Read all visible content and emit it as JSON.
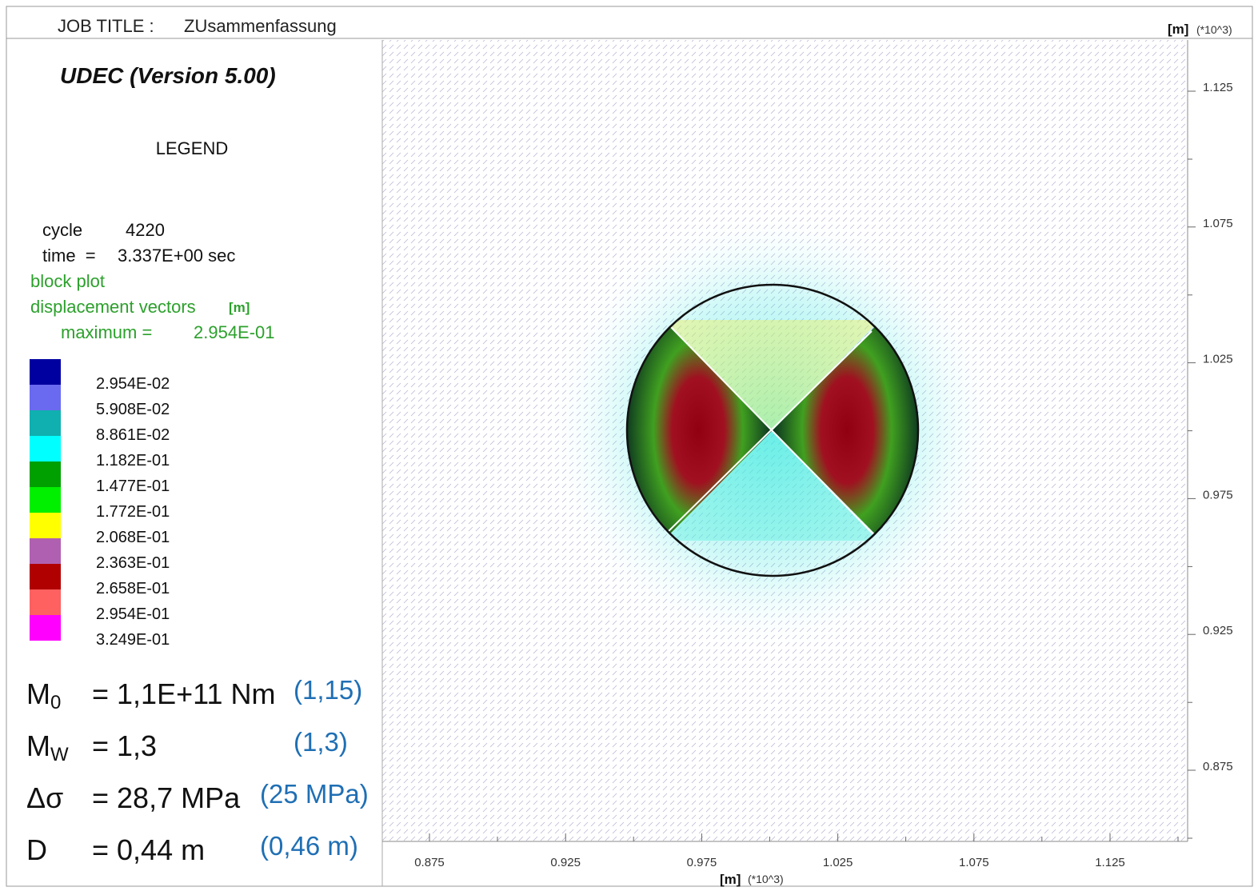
{
  "header": {
    "job_title_label": "JOB TITLE :",
    "job_title": "ZUsammenfassung",
    "program": "UDEC (Version 5.00)",
    "legend_heading": "LEGEND"
  },
  "info": {
    "cycle_label": "cycle",
    "cycle": "4220",
    "time_label": "time  =",
    "time": "3.337E+00 sec",
    "plot1": "block plot",
    "plot2": "displacement vectors",
    "plot2_unit": "[m]",
    "maximum_label": "maximum =",
    "maximum": "2.954E-01"
  },
  "color_scale": [
    {
      "color": "#0000a0",
      "label": "2.954E-02"
    },
    {
      "color": "#6a6af0",
      "label": "5.908E-02"
    },
    {
      "color": "#10b0b0",
      "label": "8.861E-02"
    },
    {
      "color": "#00ffff",
      "label": "1.182E-01"
    },
    {
      "color": "#00a000",
      "label": "1.477E-01"
    },
    {
      "color": "#00f000",
      "label": "1.772E-01"
    },
    {
      "color": "#ffff00",
      "label": "2.068E-01"
    },
    {
      "color": "#b060b0",
      "label": "2.363E-01"
    },
    {
      "color": "#b00000",
      "label": "2.658E-01"
    },
    {
      "color": "#ff6060",
      "label": "2.954E-01"
    },
    {
      "color": "#ff00ff",
      "label": "3.249E-01"
    }
  ],
  "axes": {
    "unit": "[m]",
    "multiplier": "(*10^3)",
    "x_ticks": [
      "0.875",
      "0.925",
      "0.975",
      "1.025",
      "1.075",
      "1.125"
    ],
    "y_ticks": [
      "1.125",
      "1.075",
      "1.025",
      "0.975",
      "0.925",
      "0.875"
    ]
  },
  "results": [
    {
      "symbol": "M",
      "sub": "0",
      "value": "= 1,1E+11 Nm",
      "reference": "(1,15)"
    },
    {
      "symbol": "M",
      "sub": "W",
      "value": "= 1,3",
      "reference": "(1,3)"
    },
    {
      "symbol": "Δσ",
      "value": "= 28,7 MPa",
      "reference": "(25 MPa)"
    },
    {
      "symbol": "D",
      "value": "= 0,44 m",
      "reference": "(0,46 m)"
    }
  ]
}
